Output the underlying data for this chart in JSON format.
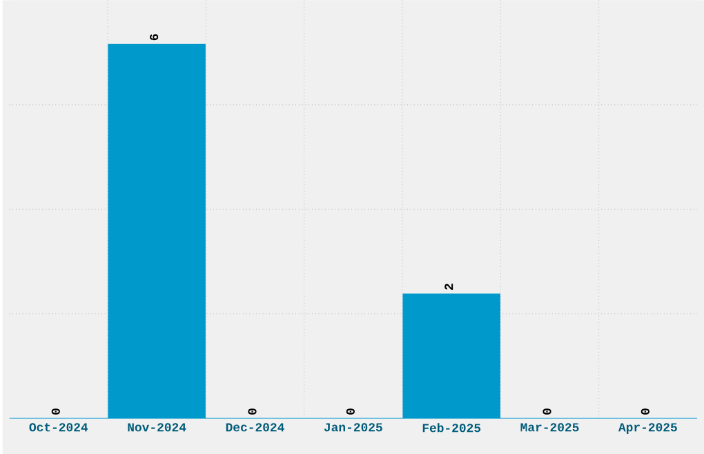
{
  "chart_data": {
    "type": "bar",
    "categories": [
      "Oct-2024",
      "Nov-2024",
      "Dec-2024",
      "Jan-2025",
      "Feb-2025",
      "Mar-2025",
      "Apr-2025"
    ],
    "values": [
      0,
      6,
      0,
      0,
      2,
      0,
      0
    ],
    "color": "#0099cc",
    "ylim": [
      0,
      6.7
    ],
    "grid": true,
    "data_labels": true,
    "tick_labels": "x"
  }
}
